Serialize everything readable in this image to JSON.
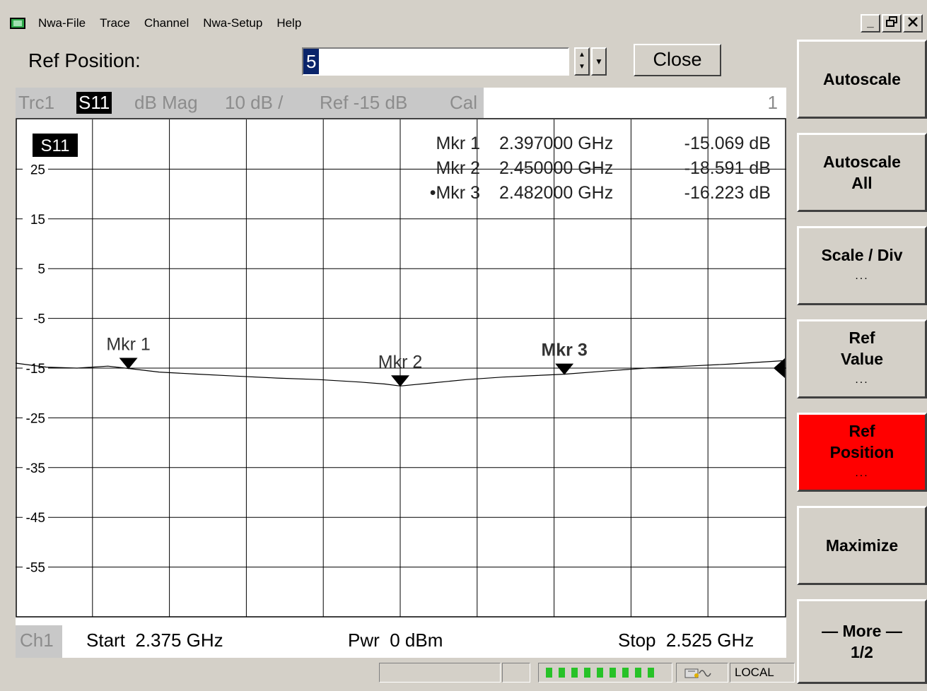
{
  "menu": {
    "items": [
      "Nwa-File",
      "Trace",
      "Channel",
      "Nwa-Setup",
      "Help"
    ],
    "window_controls": [
      "_",
      "🗗",
      "X"
    ]
  },
  "toolbar": {
    "ref_position_label": "Ref Position:",
    "ref_position_value": "5",
    "close_label": "Close"
  },
  "trace_header": {
    "trace": "Trc1",
    "param": "S11",
    "format": "dB Mag",
    "scale": "10 dB /",
    "ref": "Ref -15 dB",
    "cal": "Cal",
    "channel_num": "1"
  },
  "chart_data": {
    "type": "line",
    "trace_label": "S11",
    "x_start_ghz": 2.375,
    "x_stop_ghz": 2.525,
    "ylim": [
      -65,
      35
    ],
    "y_ticks": [
      25,
      15,
      5,
      -5,
      -15,
      -25,
      -35,
      -45,
      -55
    ],
    "y_tick_labels": [
      "25",
      "15",
      "5",
      "-5",
      "-15",
      "-25",
      "-35",
      "-45",
      "-55"
    ],
    "grid": true,
    "series": [
      {
        "color": "#000000",
        "x": [
          2.375,
          2.381,
          2.387,
          2.393,
          2.397,
          2.403,
          2.41,
          2.418,
          2.426,
          2.434,
          2.442,
          2.447,
          2.45,
          2.456,
          2.463,
          2.47,
          2.476,
          2.482,
          2.49,
          2.498,
          2.506,
          2.514,
          2.525
        ],
        "y": [
          -14.0,
          -14.8,
          -15.0,
          -14.6,
          -15.069,
          -15.8,
          -16.2,
          -16.6,
          -17.0,
          -17.3,
          -17.8,
          -18.2,
          -18.591,
          -18.0,
          -17.3,
          -16.8,
          -16.5,
          -16.223,
          -15.6,
          -15.0,
          -14.6,
          -14.2,
          -13.5
        ]
      }
    ],
    "markers": [
      {
        "label": "Mkr 1",
        "freq": "2.397000 GHz",
        "value": "-15.069 dB",
        "x": 2.397,
        "y": -15.069,
        "active": false
      },
      {
        "label": "Mkr 2",
        "freq": "2.450000 GHz",
        "value": "-18.591 dB",
        "x": 2.45,
        "y": -18.591,
        "active": false
      },
      {
        "label": "Mkr 3",
        "freq": "2.482000 GHz",
        "value": "-16.223 dB",
        "x": 2.482,
        "y": -16.223,
        "active": true
      }
    ],
    "marker_readouts": [
      "Mkr 1",
      "Mkr 2",
      "•Mkr 3"
    ],
    "reference_value": -15
  },
  "footer": {
    "channel": "Ch1",
    "start": "Start  2.375 GHz",
    "power": "Pwr  0 dBm",
    "stop": "Stop  2.525 GHz"
  },
  "status": {
    "local": "LOCAL"
  },
  "softkeys": [
    {
      "label": "Autoscale",
      "sub": "",
      "active": false
    },
    {
      "label": "Autoscale\nAll",
      "sub": "",
      "active": false
    },
    {
      "label": "Scale / Div",
      "sub": "...",
      "active": false
    },
    {
      "label": "Ref\nValue",
      "sub": "...",
      "active": false
    },
    {
      "label": "Ref\nPosition",
      "sub": "...",
      "active": true
    },
    {
      "label": "Maximize",
      "sub": "",
      "active": false
    },
    {
      "label": "— More —\n1/2",
      "sub": "",
      "active": false
    }
  ],
  "colors": {
    "active_softkey": "#ff0000",
    "selection": "#0a246a",
    "progress": "#27c227"
  }
}
